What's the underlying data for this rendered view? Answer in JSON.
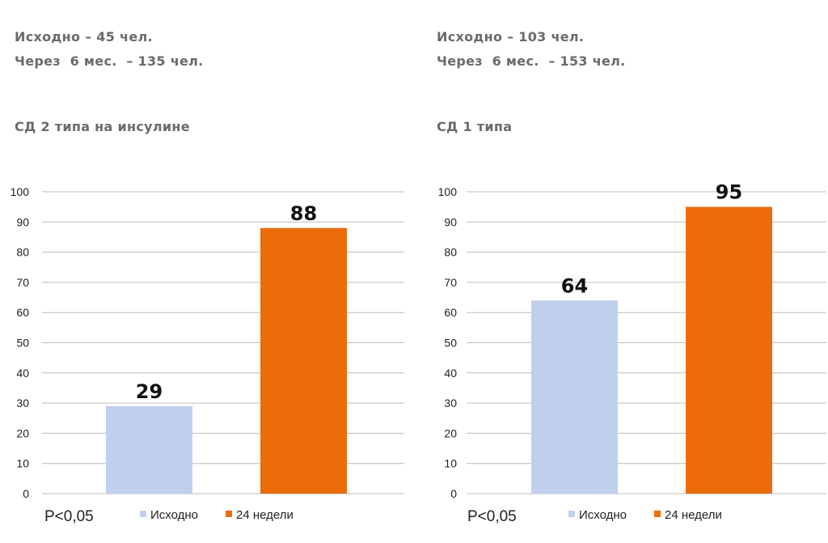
{
  "panels": [
    {
      "line1": "Исходно – 45 чел.",
      "line2": "Через  6 мес.  – 135 чел.",
      "subtitle": "СД 2 типа на инсулине",
      "pvalue": "P<0,05",
      "legend": [
        "Исходно",
        "24 недели"
      ]
    },
    {
      "line1": "Исходно – 103 чел.",
      "line2": "Через  6 мес.  – 153 чел.",
      "subtitle": "СД 1 типа",
      "pvalue": "P<0,05",
      "legend": [
        "Исходно",
        "24 недели"
      ]
    }
  ],
  "colors": {
    "baseline": "#c0d0ec",
    "week24": "#ec6c0a",
    "grid": "#bdbdbd",
    "info": "#6b6b6b"
  },
  "chart_data": [
    {
      "type": "bar",
      "title": "СД 2 типа на инсулине",
      "categories": [
        "Исходно",
        "24 недели"
      ],
      "values": [
        29,
        88
      ],
      "data_labels": [
        "29",
        "88"
      ],
      "ylim": [
        0,
        100
      ],
      "yticks": [
        "0",
        "10",
        "20",
        "30",
        "40",
        "50",
        "60",
        "70",
        "80",
        "90",
        "100"
      ],
      "legend": "bottom",
      "grid": true
    },
    {
      "type": "bar",
      "title": "СД 1 типа",
      "categories": [
        "Исходно",
        "24 недели"
      ],
      "values": [
        64,
        95
      ],
      "data_labels": [
        "64",
        "95"
      ],
      "ylim": [
        0,
        100
      ],
      "yticks": [
        "0",
        "10",
        "20",
        "30",
        "40",
        "50",
        "60",
        "70",
        "80",
        "90",
        "100"
      ],
      "legend": "bottom",
      "grid": true
    }
  ]
}
